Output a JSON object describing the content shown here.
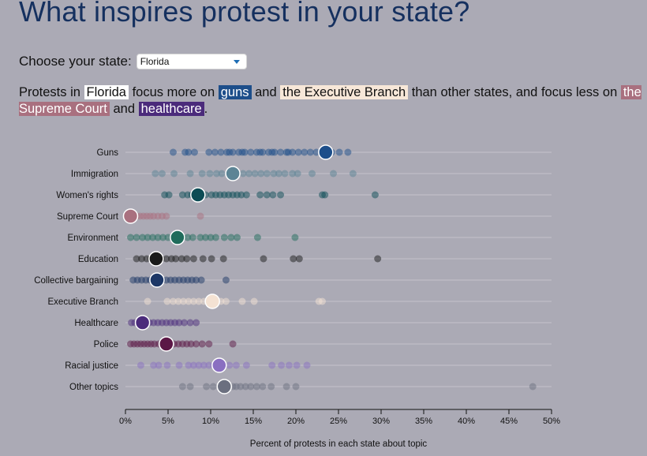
{
  "page": {
    "title": "What inspires protest in your state?",
    "chooser_label": "Choose your state:",
    "selected_state": "Florida"
  },
  "summary": {
    "p1": "Protests in",
    "state": "Florida",
    "p2": "focus more on",
    "more1": "guns",
    "p3": "and",
    "more2": "the Executive Branch",
    "p4": "than other states, and focus less on",
    "less1": "the Supreme Court",
    "p5": "and",
    "less2": "healthcare",
    "p6": "."
  },
  "chart_data": {
    "type": "scatter",
    "title": "",
    "xlabel": "Percent of protests in each state about topic",
    "ylabel": "",
    "xlim": [
      0,
      50
    ],
    "xticks": [
      "0%",
      "5%",
      "10%",
      "15%",
      "20%",
      "25%",
      "30%",
      "35%",
      "40%",
      "45%",
      "50%"
    ],
    "highlight_state": "Florida",
    "series": [
      {
        "name": "Guns",
        "color": "#1d4e8a",
        "highlight": 23.5,
        "values": [
          5.6,
          7.0,
          7.4,
          8.1,
          9.8,
          10.5,
          11.2,
          11.9,
          12.6,
          13.3,
          14.0,
          14.7,
          15.4,
          16.1,
          16.8,
          17.5,
          18.2,
          18.9,
          19.6,
          20.3,
          21.0,
          21.7,
          22.4,
          23.1,
          24.2,
          25.1,
          26.1,
          12.2,
          13.7,
          15.8,
          17.2,
          19.1
        ]
      },
      {
        "name": "Immigration",
        "color": "#5c8495",
        "highlight": 12.6,
        "values": [
          3.5,
          4.3,
          5.7,
          7.6,
          9.0,
          9.9,
          10.7,
          11.3,
          13.8,
          14.5,
          15.2,
          15.9,
          16.6,
          17.4,
          18.0,
          18.7,
          19.6,
          20.2,
          21.9,
          24.4,
          26.7
        ]
      },
      {
        "name": "Women's rights",
        "color": "#0c4c55",
        "highlight": 8.5,
        "values": [
          4.6,
          5.1,
          6.7,
          7.3,
          7.8,
          9.4,
          10.1,
          10.6,
          11.1,
          11.6,
          12.1,
          12.6,
          13.1,
          13.6,
          14.2,
          15.8,
          16.6,
          17.3,
          18.2,
          23.1,
          23.4,
          29.3
        ]
      },
      {
        "name": "Supreme Court",
        "color": "#a9707f",
        "highlight": 0.6,
        "values": [
          0.4,
          0.9,
          1.3,
          1.7,
          2.1,
          2.5,
          2.9,
          3.3,
          3.8,
          4.3,
          4.8,
          8.8
        ]
      },
      {
        "name": "Environment",
        "color": "#1f6b5b",
        "highlight": 6.1,
        "values": [
          0.6,
          1.3,
          2.0,
          2.6,
          3.2,
          3.8,
          4.4,
          5.0,
          5.6,
          6.7,
          7.3,
          7.9,
          8.8,
          9.4,
          10.0,
          10.6,
          11.6,
          12.4,
          13.1,
          15.5,
          19.9
        ]
      },
      {
        "name": "Education",
        "color": "#1a1a1a",
        "highlight": 3.6,
        "values": [
          1.3,
          1.9,
          2.5,
          3.0,
          4.2,
          4.8,
          5.4,
          5.9,
          6.6,
          7.2,
          8.0,
          9.1,
          10.1,
          11.5,
          16.2,
          19.7,
          20.4,
          29.6
        ]
      },
      {
        "name": "Collective bargaining",
        "color": "#1d3766",
        "highlight": 3.7,
        "values": [
          0.9,
          1.4,
          1.9,
          2.4,
          2.9,
          3.4,
          4.3,
          4.8,
          5.3,
          5.8,
          6.3,
          6.8,
          7.3,
          7.8,
          8.3,
          8.9,
          11.8
        ]
      },
      {
        "name": "Executive Branch",
        "color": "#f4e2d3",
        "highlight": 10.2,
        "values": [
          2.6,
          4.9,
          5.6,
          6.2,
          6.8,
          7.4,
          8.0,
          8.6,
          9.2,
          11.2,
          11.8,
          13.7,
          15.1,
          22.7,
          23.1
        ]
      },
      {
        "name": "Healthcare",
        "color": "#4b2b7b",
        "highlight": 2.0,
        "values": [
          0.7,
          1.1,
          1.5,
          2.8,
          3.3,
          3.8,
          4.3,
          4.8,
          5.3,
          5.8,
          6.3,
          6.9,
          7.6,
          8.3
        ]
      },
      {
        "name": "Police",
        "color": "#5b1746",
        "highlight": 4.8,
        "values": [
          0.6,
          1.0,
          1.4,
          1.8,
          2.2,
          2.6,
          3.0,
          3.4,
          3.9,
          5.7,
          6.2,
          6.7,
          7.2,
          7.7,
          8.3,
          9.0,
          9.8,
          12.6
        ]
      },
      {
        "name": "Racial justice",
        "color": "#8a6fc1",
        "highlight": 11.0,
        "values": [
          1.8,
          3.3,
          3.9,
          4.9,
          6.3,
          7.4,
          8.0,
          8.6,
          9.2,
          9.8,
          10.4,
          12.2,
          13.0,
          14.2,
          17.2,
          18.3,
          19.2,
          20.1,
          21.3
        ]
      },
      {
        "name": "Other topics",
        "color": "#6b6f7f",
        "highlight": 11.6,
        "values": [
          6.7,
          7.6,
          9.5,
          10.3,
          12.6,
          13.0,
          13.5,
          14.1,
          14.7,
          15.4,
          16.1,
          17.1,
          18.9,
          20.0,
          47.8
        ]
      }
    ]
  }
}
